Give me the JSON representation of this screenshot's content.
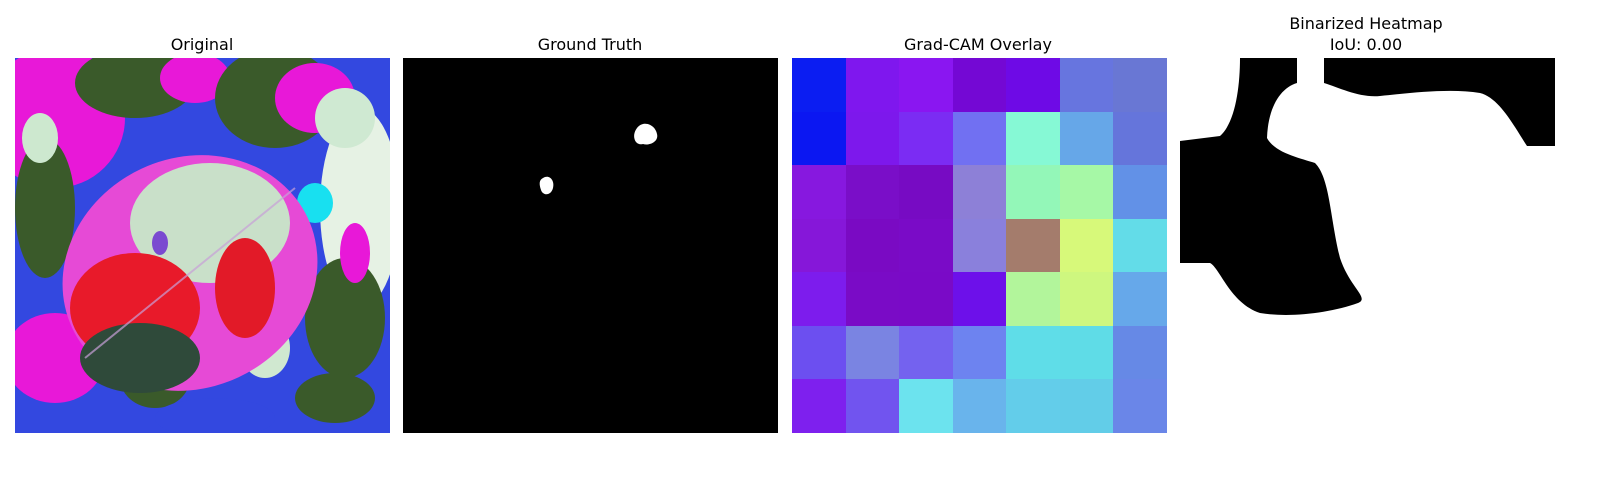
{
  "panels": {
    "original": {
      "title": "Original"
    },
    "ground_truth": {
      "title": "Ground Truth"
    },
    "gradcam": {
      "title": "Grad-CAM Overlay",
      "cells": [
        [
          "#0b1df2",
          "#7f17ee",
          "#8a16f1",
          "#7408d4",
          "#6e0ae6",
          "#6775df",
          "#6977d4"
        ],
        [
          "#0b17f2",
          "#7d18ec",
          "#7b2cf3",
          "#7170f2",
          "#86f9d5",
          "#66a7e8",
          "#6575db"
        ],
        [
          "#8718df",
          "#7a0ec8",
          "#770bc3",
          "#8d80d7",
          "#93f7b8",
          "#a6f8a6",
          "#6291e7"
        ],
        [
          "#8617d9",
          "#7a0ac3",
          "#7a0bc7",
          "#8a80dc",
          "#a47c6c",
          "#d7f97a",
          "#63dce8"
        ],
        [
          "#7d1ced",
          "#7a0bc6",
          "#7a0ac7",
          "#6d10ea",
          "#b2f59b",
          "#cef77f",
          "#66a8ea"
        ],
        [
          "#6c4ff0",
          "#7a84e2",
          "#7462ef",
          "#6d83f0",
          "#5fdde8",
          "#5fdce7",
          "#6689e6"
        ],
        [
          "#7e20ee",
          "#7154ef",
          "#6ce3ee",
          "#69b4ec",
          "#63cdea",
          "#62cde8",
          "#6a86e8"
        ]
      ]
    },
    "binarized": {
      "title": "Binarized Heatmap",
      "iou": "IoU: 0.00"
    }
  }
}
